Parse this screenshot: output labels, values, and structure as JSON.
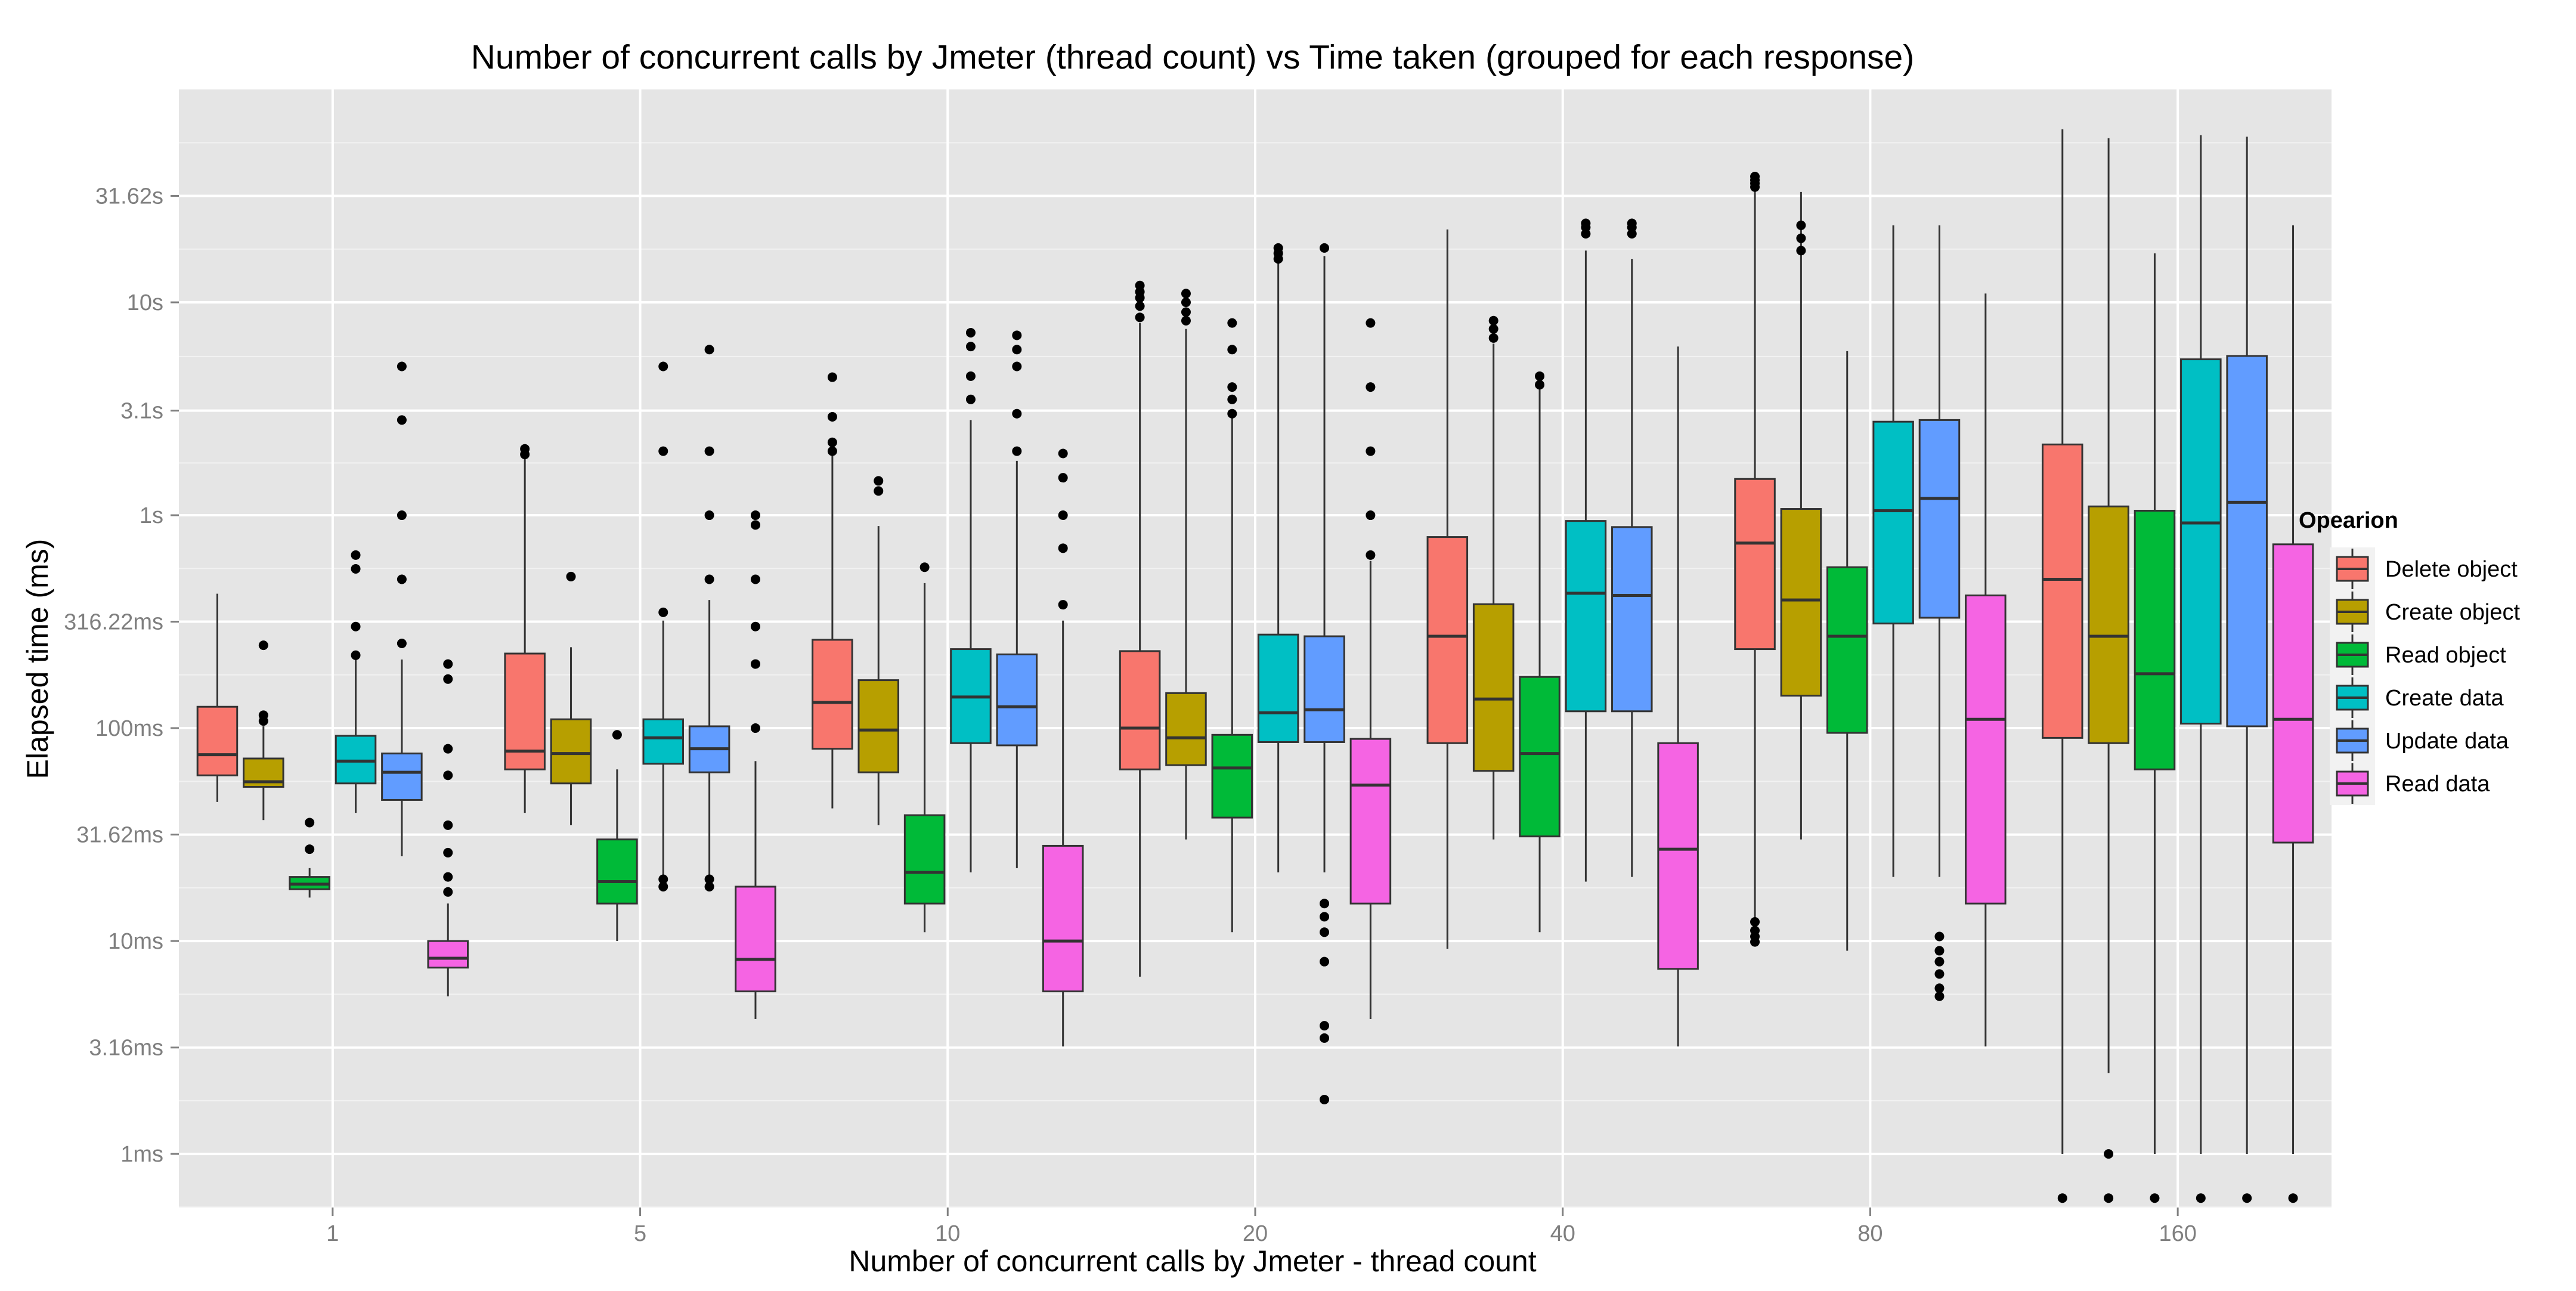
{
  "chart_data": {
    "type": "boxplot",
    "title": "Number of concurrent calls by Jmeter (thread count) vs Time taken (grouped for each response)",
    "xlabel": "Number of concurrent calls by Jmeter - thread count",
    "ylabel": "Elapsed time (ms)",
    "y_scale": "log10",
    "ylim_ms": [
      0.56,
      100000
    ],
    "y_ticks": [
      {
        "value": 1,
        "label": "1ms"
      },
      {
        "value": 3.16,
        "label": "3.16ms"
      },
      {
        "value": 10,
        "label": "10ms"
      },
      {
        "value": 31.62,
        "label": "31.62ms"
      },
      {
        "value": 100,
        "label": "100ms"
      },
      {
        "value": 316.22,
        "label": "316.22ms"
      },
      {
        "value": 1000,
        "label": "1s"
      },
      {
        "value": 3100,
        "label": "3.1s"
      },
      {
        "value": 10000,
        "label": "10s"
      },
      {
        "value": 31620,
        "label": "31.62s"
      }
    ],
    "categories": [
      "1",
      "5",
      "10",
      "20",
      "40",
      "80",
      "160"
    ],
    "grid": true,
    "legend": {
      "title": "Opearion",
      "placement": "right"
    },
    "series": [
      {
        "name": "Delete object",
        "color": "#F8766D",
        "boxes": [
          {
            "wlo": 45,
            "q1": 60,
            "median": 75,
            "q3": 126,
            "whi": 428,
            "outliers": []
          },
          {
            "wlo": 40,
            "q1": 64,
            "median": 78,
            "q3": 224,
            "whi": 1950,
            "outliers": [
              1930,
              2050
            ]
          },
          {
            "wlo": 42,
            "q1": 80,
            "median": 132,
            "q3": 260,
            "whi": 1900,
            "outliers": [
              2000,
              2200,
              2900,
              4450
            ]
          },
          {
            "wlo": 6.8,
            "q1": 64,
            "median": 100,
            "q3": 230,
            "whi": 8000,
            "outliers": [
              8500,
              9600,
              10500,
              11200,
              12000
            ]
          },
          {
            "wlo": 9.2,
            "q1": 85,
            "median": 270,
            "q3": 790,
            "whi": 22000,
            "outliers": []
          },
          {
            "wlo": 9.8,
            "q1": 235,
            "median": 740,
            "q3": 1480,
            "whi": 37000,
            "outliers": [
              9.9,
              10.5,
              11.2,
              12.3,
              34800,
              36200,
              37500,
              39000
            ]
          },
          {
            "wlo": 1.0,
            "q1": 90,
            "median": 500,
            "q3": 2150,
            "whi": 65000,
            "outliers": [
              0.62
            ]
          }
        ]
      },
      {
        "name": "Create object",
        "color": "#B79F00",
        "boxes": [
          {
            "wlo": 37,
            "q1": 53,
            "median": 56,
            "q3": 72,
            "whi": 102,
            "outliers": [
              108,
              115,
              245
            ]
          },
          {
            "wlo": 35,
            "q1": 55,
            "median": 76,
            "q3": 110,
            "whi": 240,
            "outliers": [
              515
            ]
          },
          {
            "wlo": 35,
            "q1": 62,
            "median": 98,
            "q3": 168,
            "whi": 890,
            "outliers": [
              1300,
              1450
            ]
          },
          {
            "wlo": 30,
            "q1": 67,
            "median": 90,
            "q3": 146,
            "whi": 7500,
            "outliers": [
              8200,
              9000,
              10000,
              11000
            ]
          },
          {
            "wlo": 30,
            "q1": 63,
            "median": 137,
            "q3": 382,
            "whi": 6400,
            "outliers": [
              6800,
              7500,
              8200
            ]
          },
          {
            "wlo": 30,
            "q1": 142,
            "median": 400,
            "q3": 1070,
            "whi": 33000,
            "outliers": [
              17500,
              20000,
              23000
            ]
          },
          {
            "wlo": 2.4,
            "q1": 85,
            "median": 270,
            "q3": 1100,
            "whi": 59000,
            "outliers": [
              1.0,
              0.62
            ]
          }
        ]
      },
      {
        "name": "Read object",
        "color": "#00BA38",
        "boxes": [
          {
            "wlo": 16,
            "q1": 17.5,
            "median": 18.5,
            "q3": 20,
            "whi": 22,
            "outliers": [
              27,
              36
            ]
          },
          {
            "wlo": 10,
            "q1": 15,
            "median": 19,
            "q3": 30,
            "whi": 64,
            "outliers": [
              93
            ]
          },
          {
            "wlo": 11,
            "q1": 15,
            "median": 21,
            "q3": 39,
            "whi": 480,
            "outliers": [
              570
            ]
          },
          {
            "wlo": 11,
            "q1": 38,
            "median": 65,
            "q3": 93,
            "whi": 2900,
            "outliers": [
              3000,
              3500,
              4000,
              6000,
              8000
            ]
          },
          {
            "wlo": 11,
            "q1": 31,
            "median": 76,
            "q3": 174,
            "whi": 3900,
            "outliers": [
              4100,
              4500
            ]
          },
          {
            "wlo": 9,
            "q1": 95,
            "median": 270,
            "q3": 570,
            "whi": 5900,
            "outliers": []
          },
          {
            "wlo": 1.0,
            "q1": 64,
            "median": 180,
            "q3": 1050,
            "whi": 17000,
            "outliers": [
              0.62
            ]
          }
        ]
      },
      {
        "name": "Create data",
        "color": "#00BFC4",
        "boxes": [
          {
            "wlo": 40,
            "q1": 55,
            "median": 70,
            "q3": 92,
            "whi": 210,
            "outliers": [
              220,
              300,
              560,
              650
            ]
          },
          {
            "wlo": 19,
            "q1": 68,
            "median": 90,
            "q3": 110,
            "whi": 320,
            "outliers": [
              18,
              19.5,
              350,
              2000,
              5000
            ]
          },
          {
            "wlo": 21,
            "q1": 85,
            "median": 140,
            "q3": 235,
            "whi": 2800,
            "outliers": [
              3500,
              4500,
              6200,
              7200
            ]
          },
          {
            "wlo": 21,
            "q1": 86,
            "median": 118,
            "q3": 275,
            "whi": 16500,
            "outliers": [
              16000,
              17000,
              18000
            ]
          },
          {
            "wlo": 19,
            "q1": 120,
            "median": 430,
            "q3": 940,
            "whi": 17500,
            "outliers": [
              21000,
              22500,
              23500
            ]
          },
          {
            "wlo": 20,
            "q1": 310,
            "median": 1050,
            "q3": 2750,
            "whi": 23000,
            "outliers": []
          },
          {
            "wlo": 1.0,
            "q1": 105,
            "median": 920,
            "q3": 5400,
            "whi": 61000,
            "outliers": [
              0.62
            ]
          }
        ]
      },
      {
        "name": "Update data",
        "color": "#619CFF",
        "boxes": [
          {
            "wlo": 25,
            "q1": 46,
            "median": 62,
            "q3": 76,
            "whi": 210,
            "outliers": [
              250,
              500,
              1000,
              2800,
              5000
            ]
          },
          {
            "wlo": 19,
            "q1": 62,
            "median": 80,
            "q3": 102,
            "whi": 400,
            "outliers": [
              18,
              19.5,
              500,
              1000,
              2000,
              6000
            ]
          },
          {
            "wlo": 22,
            "q1": 83,
            "median": 126,
            "q3": 222,
            "whi": 1800,
            "outliers": [
              2000,
              3000,
              5000,
              6000,
              7000
            ]
          },
          {
            "wlo": 21,
            "q1": 86,
            "median": 122,
            "q3": 270,
            "whi": 16500,
            "outliers": [
              1.8,
              3.5,
              4.0,
              8.0,
              11,
              13,
              15,
              18000
            ]
          },
          {
            "wlo": 20,
            "q1": 120,
            "median": 420,
            "q3": 880,
            "whi": 16000,
            "outliers": [
              21000,
              22500,
              23500
            ]
          },
          {
            "wlo": 20,
            "q1": 330,
            "median": 1200,
            "q3": 2800,
            "whi": 23000,
            "outliers": [
              5.5,
              6.0,
              7.0,
              8.0,
              9.0,
              10.5
            ]
          },
          {
            "wlo": 1.0,
            "q1": 102,
            "median": 1150,
            "q3": 5600,
            "whi": 60000,
            "outliers": [
              0.62
            ]
          }
        ]
      },
      {
        "name": "Read data",
        "color": "#F564E3",
        "boxes": [
          {
            "wlo": 5.5,
            "q1": 7.5,
            "median": 8.3,
            "q3": 10,
            "whi": 15,
            "outliers": [
              17,
              20,
              26,
              35,
              60,
              80,
              170,
              200
            ]
          },
          {
            "wlo": 4.3,
            "q1": 5.8,
            "median": 8.2,
            "q3": 18,
            "whi": 70,
            "outliers": [
              100,
              200,
              300,
              500,
              900,
              1000
            ]
          },
          {
            "wlo": 3.2,
            "q1": 5.8,
            "median": 10,
            "q3": 28,
            "whi": 320,
            "outliers": [
              380,
              700,
              1000,
              1500,
              1950
            ]
          },
          {
            "wlo": 4.3,
            "q1": 15,
            "median": 54,
            "q3": 89,
            "whi": 610,
            "outliers": [
              650,
              1000,
              2000,
              4000,
              8000
            ]
          },
          {
            "wlo": 3.2,
            "q1": 7.4,
            "median": 27,
            "q3": 85,
            "whi": 6200,
            "outliers": []
          },
          {
            "wlo": 3.2,
            "q1": 15,
            "median": 110,
            "q3": 420,
            "whi": 11000,
            "outliers": []
          },
          {
            "wlo": 1.0,
            "q1": 29,
            "median": 110,
            "q3": 730,
            "whi": 23000,
            "outliers": [
              0.62
            ]
          }
        ]
      }
    ]
  }
}
